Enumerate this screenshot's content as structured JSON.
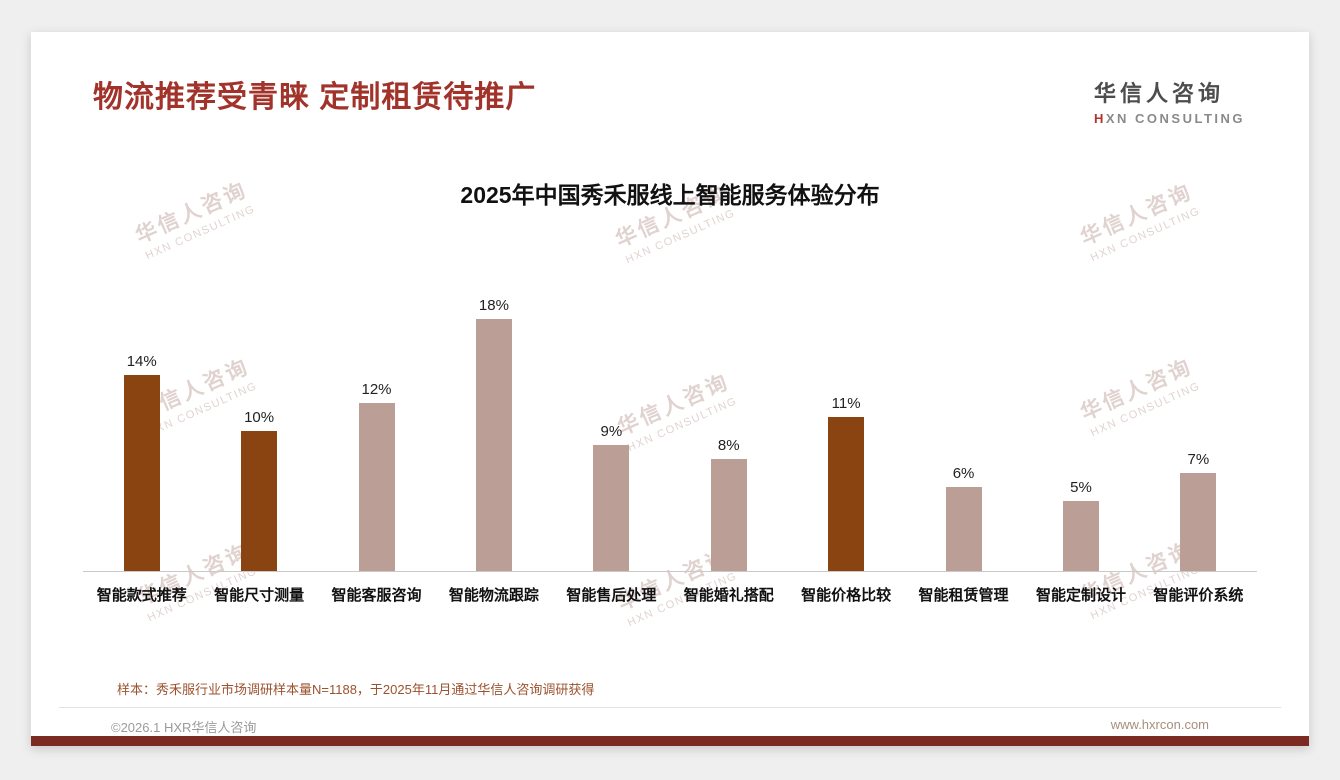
{
  "header": {
    "title": "物流推荐受青睐 定制租赁待推广"
  },
  "logo": {
    "name_cn": "华信人咨询",
    "en_first": "H",
    "en_rest": "XN CONSULTING"
  },
  "watermark": {
    "line1": "华信人咨询",
    "line2": "HXN CONSULTING"
  },
  "colors": {
    "title_red": "#A1332B",
    "bar_highlight": "#8A4412",
    "bar_normal": "#BB9E95",
    "bottom_strip": "#7C2B22"
  },
  "chart_data": {
    "type": "bar",
    "title": "2025年中国秀禾服线上智能服务体验分布",
    "categories": [
      "智能款式推荐",
      "智能尺寸测量",
      "智能客服咨询",
      "智能物流跟踪",
      "智能售后处理",
      "智能婚礼搭配",
      "智能价格比较",
      "智能租赁管理",
      "智能定制设计",
      "智能评价系统"
    ],
    "values": [
      14,
      10,
      12,
      18,
      9,
      8,
      11,
      6,
      5,
      7
    ],
    "value_labels": [
      "14%",
      "10%",
      "12%",
      "18%",
      "9%",
      "8%",
      "11%",
      "6%",
      "5%",
      "7%"
    ],
    "highlight_indices": [
      0,
      1,
      6
    ],
    "unit": "%",
    "ylim": [
      0,
      20
    ],
    "grid": false,
    "legend": false,
    "xlabel": "",
    "ylabel": ""
  },
  "footnote": {
    "sample": "样本：秀禾服行业市场调研样本量N=1188，于2025年11月通过华信人咨询调研获得"
  },
  "footer": {
    "left": "©2026.1 HXR华信人咨询",
    "right": "www.hxrcon.com"
  }
}
